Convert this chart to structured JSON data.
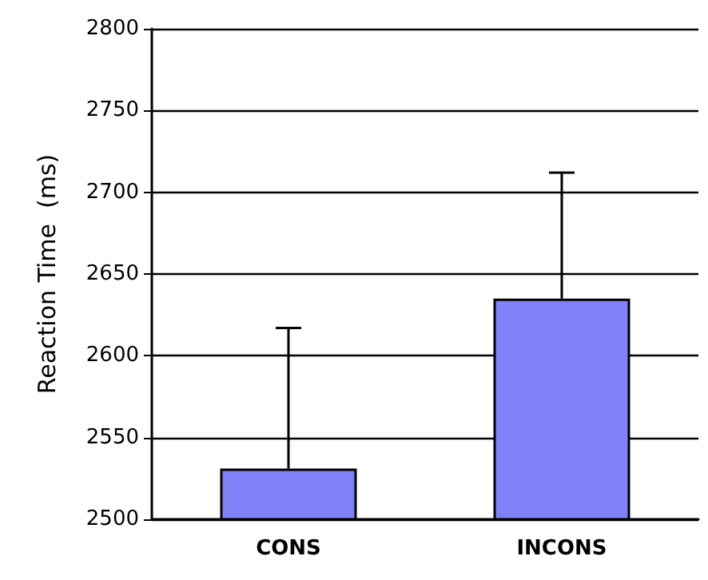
{
  "chart_data": {
    "type": "bar",
    "ylabel": "Reaction Time  (ms)",
    "categories": [
      "CONS",
      "INCONS"
    ],
    "series": [
      {
        "color": "#8080f8",
        "values": [
          2531,
          2635
        ],
        "errors": [
          [
            2531,
            2617
          ],
          [
            2635,
            2712
          ]
        ]
      }
    ],
    "ylim": [
      2500,
      2800
    ],
    "yticks": [
      2500,
      2550,
      2600,
      2650,
      2700,
      2750,
      2800
    ],
    "grid": "y"
  }
}
